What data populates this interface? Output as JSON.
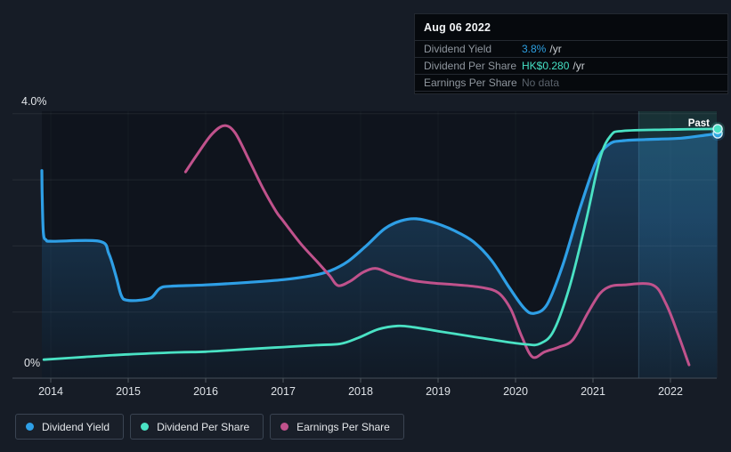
{
  "tooltip": {
    "date": "Aug 06 2022",
    "rows": [
      {
        "label": "Dividend Yield",
        "value": "3.8%",
        "unit": "/yr",
        "value_color": "#2d9fe0"
      },
      {
        "label": "Dividend Per Share",
        "value": "HK$0.280",
        "unit": "/yr",
        "value_color": "#45e0c4"
      },
      {
        "label": "Earnings Per Share",
        "value": "No data",
        "unit": "",
        "value_color": "#5a626b"
      }
    ]
  },
  "legend": [
    {
      "label": "Dividend Yield",
      "color": "#2e9fe6"
    },
    {
      "label": "Dividend Per Share",
      "color": "#4ae2c4"
    },
    {
      "label": "Earnings Per Share",
      "color": "#c0528c"
    }
  ],
  "colors": {
    "page_background": "#161c26",
    "plot_background": "#0f141d",
    "gridline": "rgba(255,255,255,0.07)",
    "axis_line": "#454e59",
    "tick_label": "#dde1e6",
    "past_band_edge": "rgba(160,220,255,0.20)"
  },
  "chart_data": {
    "type": "line",
    "title": "Dividend history chart",
    "x_axis": {
      "ticks": [
        2014,
        2015,
        2016,
        2017,
        2018,
        2019,
        2020,
        2021,
        2022
      ],
      "min": 2013.88,
      "max": 2022.62
    },
    "y_axis": {
      "min": 0,
      "max": 4,
      "unit": "%",
      "top_label": "4.0%",
      "bottom_label": "0%",
      "gridline_step": 1
    },
    "past_region": {
      "label": "Past",
      "start_year": 2021.59
    },
    "series": [
      {
        "name": "Dividend Yield",
        "color": "#2e9fe6",
        "width": 3.2,
        "area": true,
        "end_marker": true,
        "points": [
          [
            2013.885,
            3.14
          ],
          [
            2013.89,
            2.75
          ],
          [
            2013.905,
            2.2
          ],
          [
            2013.94,
            2.09
          ],
          [
            2014.03,
            2.07
          ],
          [
            2014.63,
            2.07
          ],
          [
            2014.75,
            1.88
          ],
          [
            2014.84,
            1.55
          ],
          [
            2014.91,
            1.25
          ],
          [
            2014.98,
            1.18
          ],
          [
            2015.16,
            1.18
          ],
          [
            2015.3,
            1.22
          ],
          [
            2015.41,
            1.36
          ],
          [
            2015.55,
            1.39
          ],
          [
            2016.0,
            1.41
          ],
          [
            2016.56,
            1.45
          ],
          [
            2017.0,
            1.49
          ],
          [
            2017.37,
            1.55
          ],
          [
            2017.6,
            1.62
          ],
          [
            2017.83,
            1.76
          ],
          [
            2018.08,
            2.01
          ],
          [
            2018.31,
            2.26
          ],
          [
            2018.52,
            2.38
          ],
          [
            2018.72,
            2.41
          ],
          [
            2018.98,
            2.34
          ],
          [
            2019.23,
            2.22
          ],
          [
            2019.46,
            2.06
          ],
          [
            2019.69,
            1.78
          ],
          [
            2019.92,
            1.37
          ],
          [
            2020.11,
            1.06
          ],
          [
            2020.24,
            0.98
          ],
          [
            2020.41,
            1.12
          ],
          [
            2020.61,
            1.71
          ],
          [
            2020.84,
            2.6
          ],
          [
            2021.05,
            3.3
          ],
          [
            2021.21,
            3.54
          ],
          [
            2021.37,
            3.59
          ],
          [
            2021.68,
            3.61
          ],
          [
            2022.14,
            3.63
          ],
          [
            2022.48,
            3.68
          ],
          [
            2022.61,
            3.7
          ]
        ]
      },
      {
        "name": "Dividend Per Share",
        "color": "#4ae2c4",
        "width": 2.8,
        "area": false,
        "end_marker": true,
        "points": [
          [
            2013.91,
            0.28
          ],
          [
            2014.44,
            0.32
          ],
          [
            2015.0,
            0.36
          ],
          [
            2015.64,
            0.39
          ],
          [
            2016.0,
            0.4
          ],
          [
            2016.56,
            0.44
          ],
          [
            2017.0,
            0.47
          ],
          [
            2017.43,
            0.5
          ],
          [
            2017.74,
            0.52
          ],
          [
            2017.97,
            0.61
          ],
          [
            2018.23,
            0.74
          ],
          [
            2018.48,
            0.79
          ],
          [
            2018.69,
            0.77
          ],
          [
            2019.0,
            0.71
          ],
          [
            2019.44,
            0.63
          ],
          [
            2019.87,
            0.55
          ],
          [
            2020.15,
            0.51
          ],
          [
            2020.31,
            0.52
          ],
          [
            2020.49,
            0.71
          ],
          [
            2020.7,
            1.39
          ],
          [
            2020.91,
            2.38
          ],
          [
            2021.09,
            3.32
          ],
          [
            2021.23,
            3.67
          ],
          [
            2021.39,
            3.74
          ],
          [
            2021.97,
            3.76
          ],
          [
            2022.61,
            3.77
          ]
        ]
      },
      {
        "name": "Earnings Per Share",
        "color": "#c0528c",
        "width": 3.0,
        "area": false,
        "end_marker": false,
        "points": [
          [
            2015.74,
            3.12
          ],
          [
            2015.9,
            3.4
          ],
          [
            2016.08,
            3.69
          ],
          [
            2016.24,
            3.82
          ],
          [
            2016.38,
            3.71
          ],
          [
            2016.56,
            3.3
          ],
          [
            2016.74,
            2.87
          ],
          [
            2016.91,
            2.52
          ],
          [
            2017.0,
            2.38
          ],
          [
            2017.23,
            2.03
          ],
          [
            2017.44,
            1.76
          ],
          [
            2017.6,
            1.55
          ],
          [
            2017.71,
            1.4
          ],
          [
            2017.87,
            1.47
          ],
          [
            2018.03,
            1.6
          ],
          [
            2018.2,
            1.66
          ],
          [
            2018.4,
            1.57
          ],
          [
            2018.66,
            1.48
          ],
          [
            2018.92,
            1.44
          ],
          [
            2019.26,
            1.41
          ],
          [
            2019.57,
            1.37
          ],
          [
            2019.78,
            1.29
          ],
          [
            2019.94,
            1.04
          ],
          [
            2020.08,
            0.63
          ],
          [
            2020.22,
            0.32
          ],
          [
            2020.38,
            0.4
          ],
          [
            2020.56,
            0.47
          ],
          [
            2020.74,
            0.58
          ],
          [
            2020.93,
            0.98
          ],
          [
            2021.09,
            1.28
          ],
          [
            2021.23,
            1.39
          ],
          [
            2021.39,
            1.41
          ],
          [
            2021.77,
            1.41
          ],
          [
            2021.94,
            1.13
          ],
          [
            2022.1,
            0.66
          ],
          [
            2022.24,
            0.2
          ]
        ]
      }
    ],
    "legend_position": "bottom-left",
    "grid": true
  }
}
